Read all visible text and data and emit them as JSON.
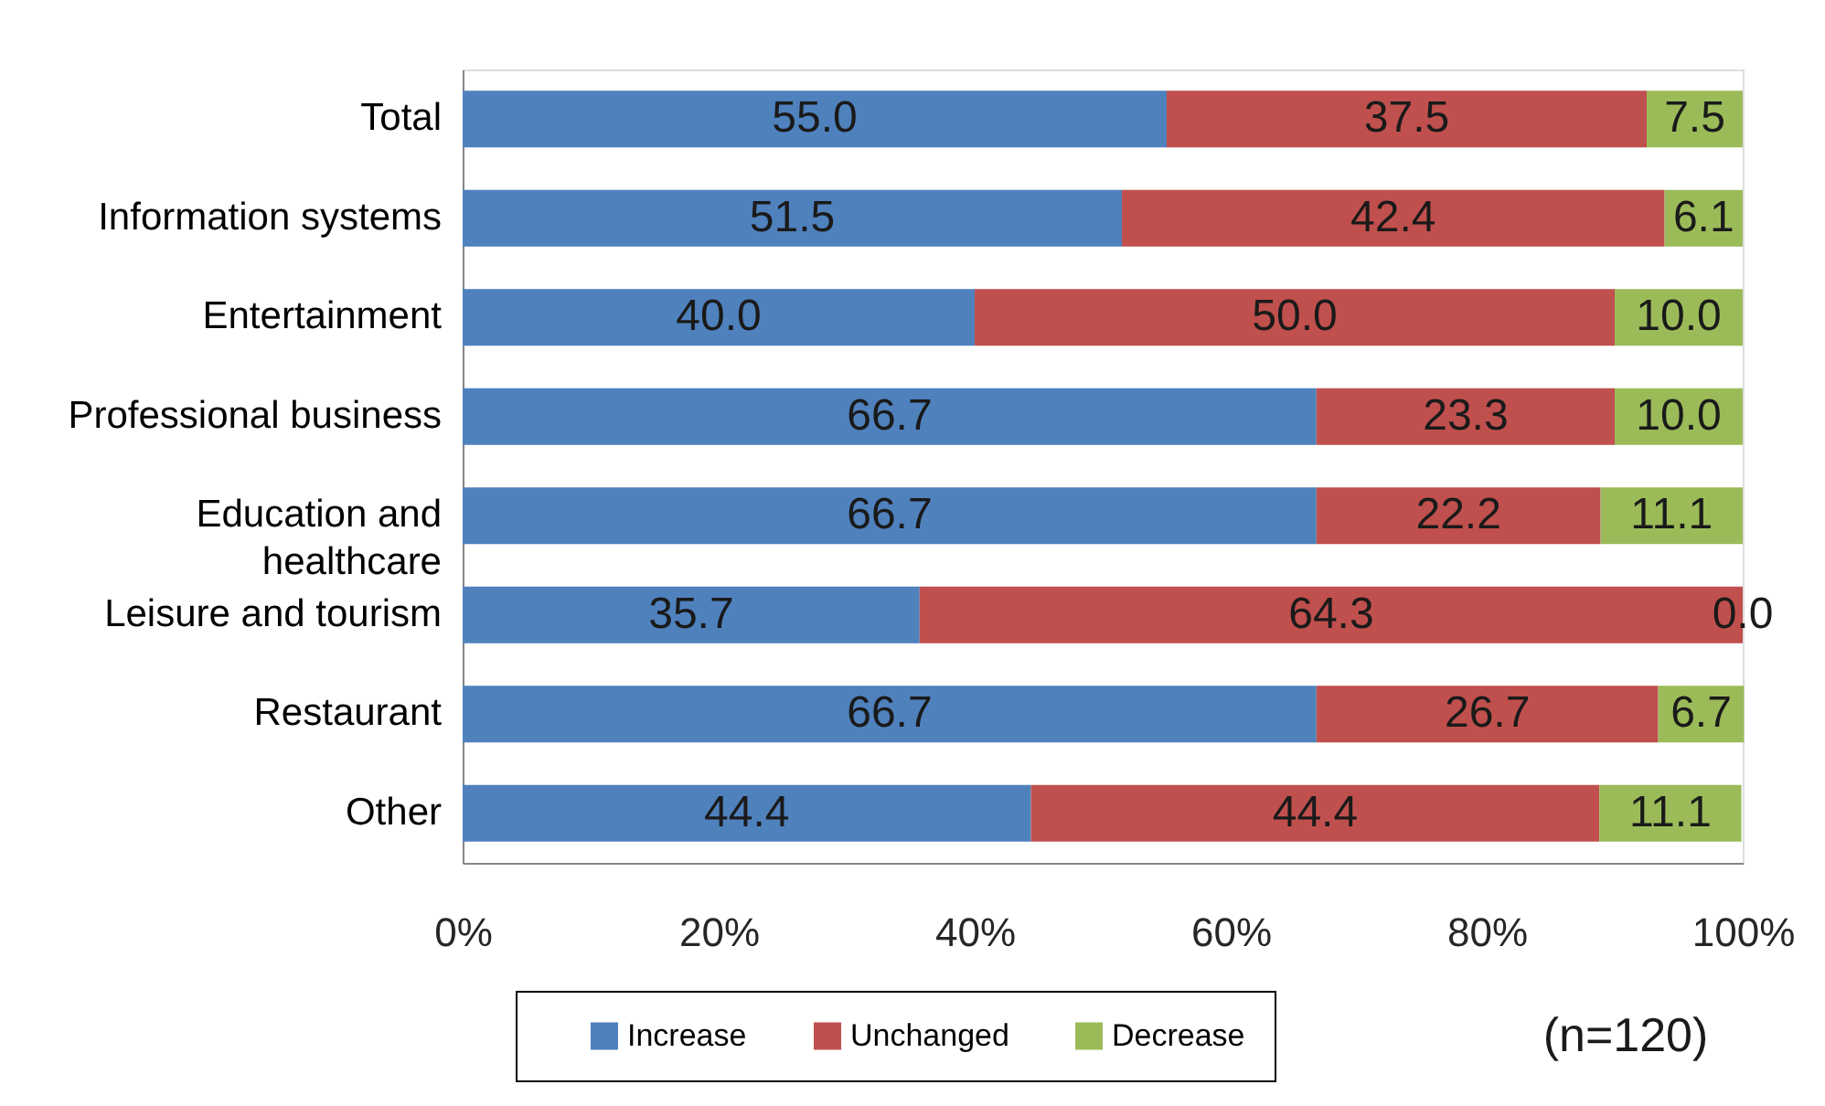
{
  "chart_data": {
    "type": "bar",
    "orientation": "horizontal",
    "stacked": true,
    "categories": [
      "Total",
      "Information systems",
      "Entertainment",
      "Professional business",
      "Education and healthcare",
      "Leisure and tourism",
      "Restaurant",
      "Other"
    ],
    "series": [
      {
        "name": "Increase",
        "color": "#4f81bd",
        "values": [
          55.0,
          51.5,
          40.0,
          66.7,
          66.7,
          35.7,
          66.7,
          44.4
        ],
        "value_labels": [
          "55.0",
          "51.5",
          "40.0",
          "66.7",
          "66.7",
          "35.7",
          "66.7",
          "44.4"
        ]
      },
      {
        "name": "Unchanged",
        "color": "#c0504d",
        "values": [
          37.5,
          42.4,
          50.0,
          23.3,
          22.2,
          64.3,
          26.7,
          44.4
        ],
        "value_labels": [
          "37.5",
          "42.4",
          "50.0",
          "23.3",
          "22.2",
          "64.3",
          "26.7",
          "44.4"
        ]
      },
      {
        "name": "Decrease",
        "color": "#9bbb59",
        "values": [
          7.5,
          6.1,
          10.0,
          10.0,
          11.1,
          0.0,
          6.7,
          11.1
        ],
        "value_labels": [
          "7.5",
          "6.1",
          "10.0",
          "10.0",
          "11.1",
          "0.0",
          "6.7",
          "11.1"
        ]
      }
    ],
    "xlim": [
      0,
      100
    ],
    "xticks": [
      {
        "value": 0,
        "label": "0%"
      },
      {
        "value": 20,
        "label": "20%"
      },
      {
        "value": 40,
        "label": "40%"
      },
      {
        "value": 60,
        "label": "60%"
      },
      {
        "value": 80,
        "label": "80%"
      },
      {
        "value": 100,
        "label": "100%"
      }
    ],
    "legend": "bottom",
    "grid": false,
    "annotations": [
      "(n=120)"
    ]
  }
}
